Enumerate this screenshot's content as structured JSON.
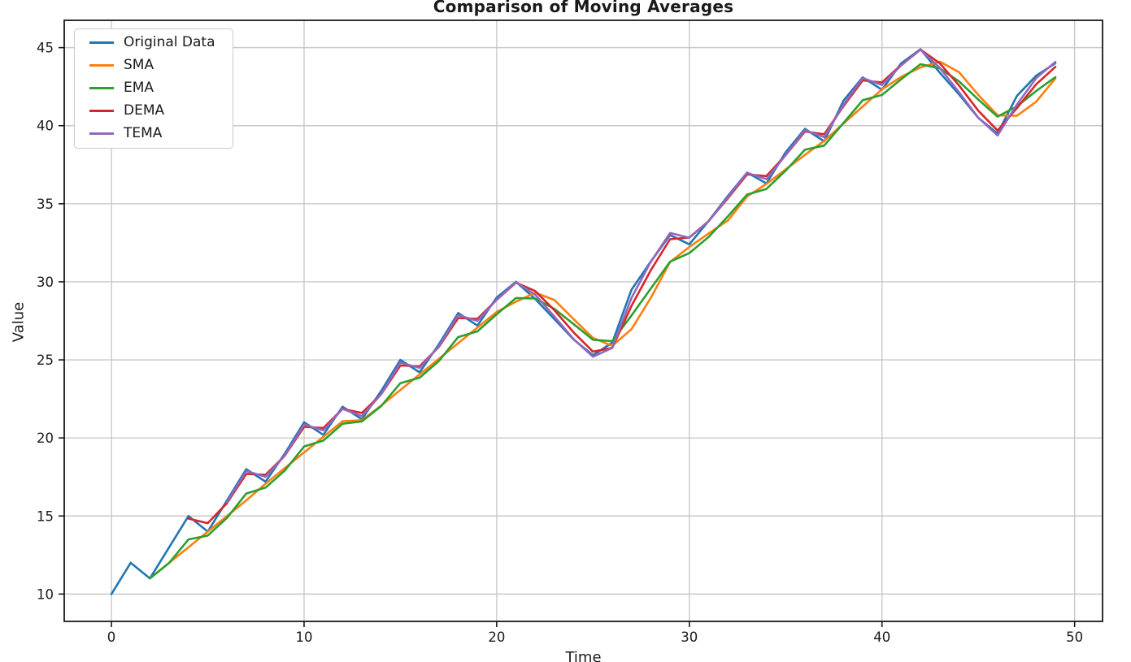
{
  "chart_data": {
    "type": "line",
    "title": "Comparison of Moving Averages",
    "xlabel": "Time",
    "ylabel": "Value",
    "grid": true,
    "legend_position": "upper left",
    "x_ticks": [
      0,
      10,
      20,
      30,
      40,
      50
    ],
    "y_ticks": [
      10,
      15,
      20,
      25,
      30,
      35,
      40,
      45
    ],
    "xlim": [
      -2.45,
      51.45
    ],
    "ylim": [
      8.25,
      46.75
    ],
    "x": [
      0,
      1,
      2,
      3,
      4,
      5,
      6,
      7,
      8,
      9,
      10,
      11,
      12,
      13,
      14,
      15,
      16,
      17,
      18,
      19,
      20,
      21,
      22,
      23,
      24,
      25,
      26,
      27,
      28,
      29,
      30,
      31,
      32,
      33,
      34,
      35,
      36,
      37,
      38,
      39,
      40,
      41,
      42,
      43,
      44,
      45,
      46,
      47,
      48,
      49
    ],
    "series": [
      {
        "name": "Original Data",
        "color": "#1f77b4",
        "values": [
          10,
          12,
          11,
          13,
          15,
          14,
          16,
          18,
          17.2,
          19,
          21,
          20.2,
          22,
          21.2,
          23,
          25,
          24.2,
          26,
          28,
          27.2,
          29,
          30,
          28.9,
          27.6,
          26.3,
          25.3,
          26.1,
          29.5,
          31.3,
          33,
          32.4,
          33.9,
          35.5,
          37,
          36.3,
          38.3,
          39.8,
          39,
          41.6,
          43.1,
          42.3,
          44,
          44.9,
          43.4,
          42,
          40.5,
          39.5,
          41.9,
          43.2,
          44
        ]
      },
      {
        "name": "SMA",
        "color": "#ff7f0e",
        "values": [
          null,
          null,
          11,
          12,
          13,
          14,
          15,
          16,
          17.07,
          18.07,
          19.07,
          20.07,
          21.07,
          21.13,
          22.07,
          23.07,
          24.07,
          25.07,
          26.07,
          27.07,
          28.07,
          28.73,
          29.3,
          28.83,
          27.6,
          26.4,
          25.9,
          26.97,
          28.97,
          31.27,
          32.23,
          33.1,
          33.93,
          35.47,
          36.27,
          37.2,
          38.13,
          39.03,
          40.13,
          41.23,
          42.33,
          43.13,
          43.73,
          44.1,
          43.43,
          41.97,
          40.67,
          40.63,
          41.53,
          43.03
        ]
      },
      {
        "name": "EMA",
        "color": "#2ca02c",
        "values": [
          null,
          null,
          11,
          12,
          13.5,
          13.75,
          14.88,
          16.44,
          16.82,
          17.91,
          19.45,
          19.83,
          20.91,
          21.06,
          22.03,
          23.51,
          23.86,
          24.93,
          26.46,
          26.83,
          27.92,
          28.96,
          28.93,
          28.26,
          27.28,
          26.29,
          26.2,
          27.85,
          29.57,
          31.29,
          31.84,
          32.87,
          34.19,
          35.59,
          35.95,
          37.12,
          38.46,
          38.73,
          40.17,
          41.63,
          41.97,
          42.98,
          43.94,
          43.67,
          42.84,
          41.67,
          40.58,
          41.24,
          42.22,
          43.11
        ]
      },
      {
        "name": "DEMA",
        "color": "#d62728",
        "values": [
          null,
          null,
          null,
          null,
          14.83,
          14.54,
          15.83,
          17.7,
          17.64,
          18.87,
          20.71,
          20.64,
          21.86,
          21.6,
          22.79,
          24.64,
          24.59,
          25.83,
          27.68,
          27.63,
          28.85,
          29.95,
          29.41,
          28.17,
          26.75,
          25.53,
          25.77,
          28.46,
          30.74,
          32.73,
          32.84,
          33.89,
          35.35,
          36.88,
          36.77,
          38.12,
          39.63,
          39.45,
          41.24,
          42.9,
          42.77,
          43.89,
          44.88,
          44,
          42.58,
          40.96,
          39.69,
          41.12,
          42.65,
          43.77
        ]
      },
      {
        "name": "TEMA",
        "color": "#9467bd",
        "values": [
          null,
          null,
          null,
          null,
          null,
          null,
          15.89,
          17.88,
          17.51,
          18.87,
          20.85,
          20.49,
          21.86,
          21.4,
          22.79,
          24.82,
          24.49,
          25.86,
          27.86,
          27.5,
          28.86,
          29.98,
          29.17,
          27.77,
          26.32,
          25.2,
          25.77,
          28.98,
          31.28,
          33.13,
          32.82,
          33.88,
          35.42,
          36.98,
          36.58,
          38.12,
          39.71,
          39.27,
          41.33,
          43.05,
          42.61,
          43.86,
          44.87,
          43.7,
          42.14,
          40.51,
          39.37,
          41.35,
          43.04,
          44.08
        ]
      }
    ]
  },
  "style": {
    "grid_color": "#c9c9c9",
    "spine_color": "#1a1a1a",
    "background": "#ffffff"
  }
}
